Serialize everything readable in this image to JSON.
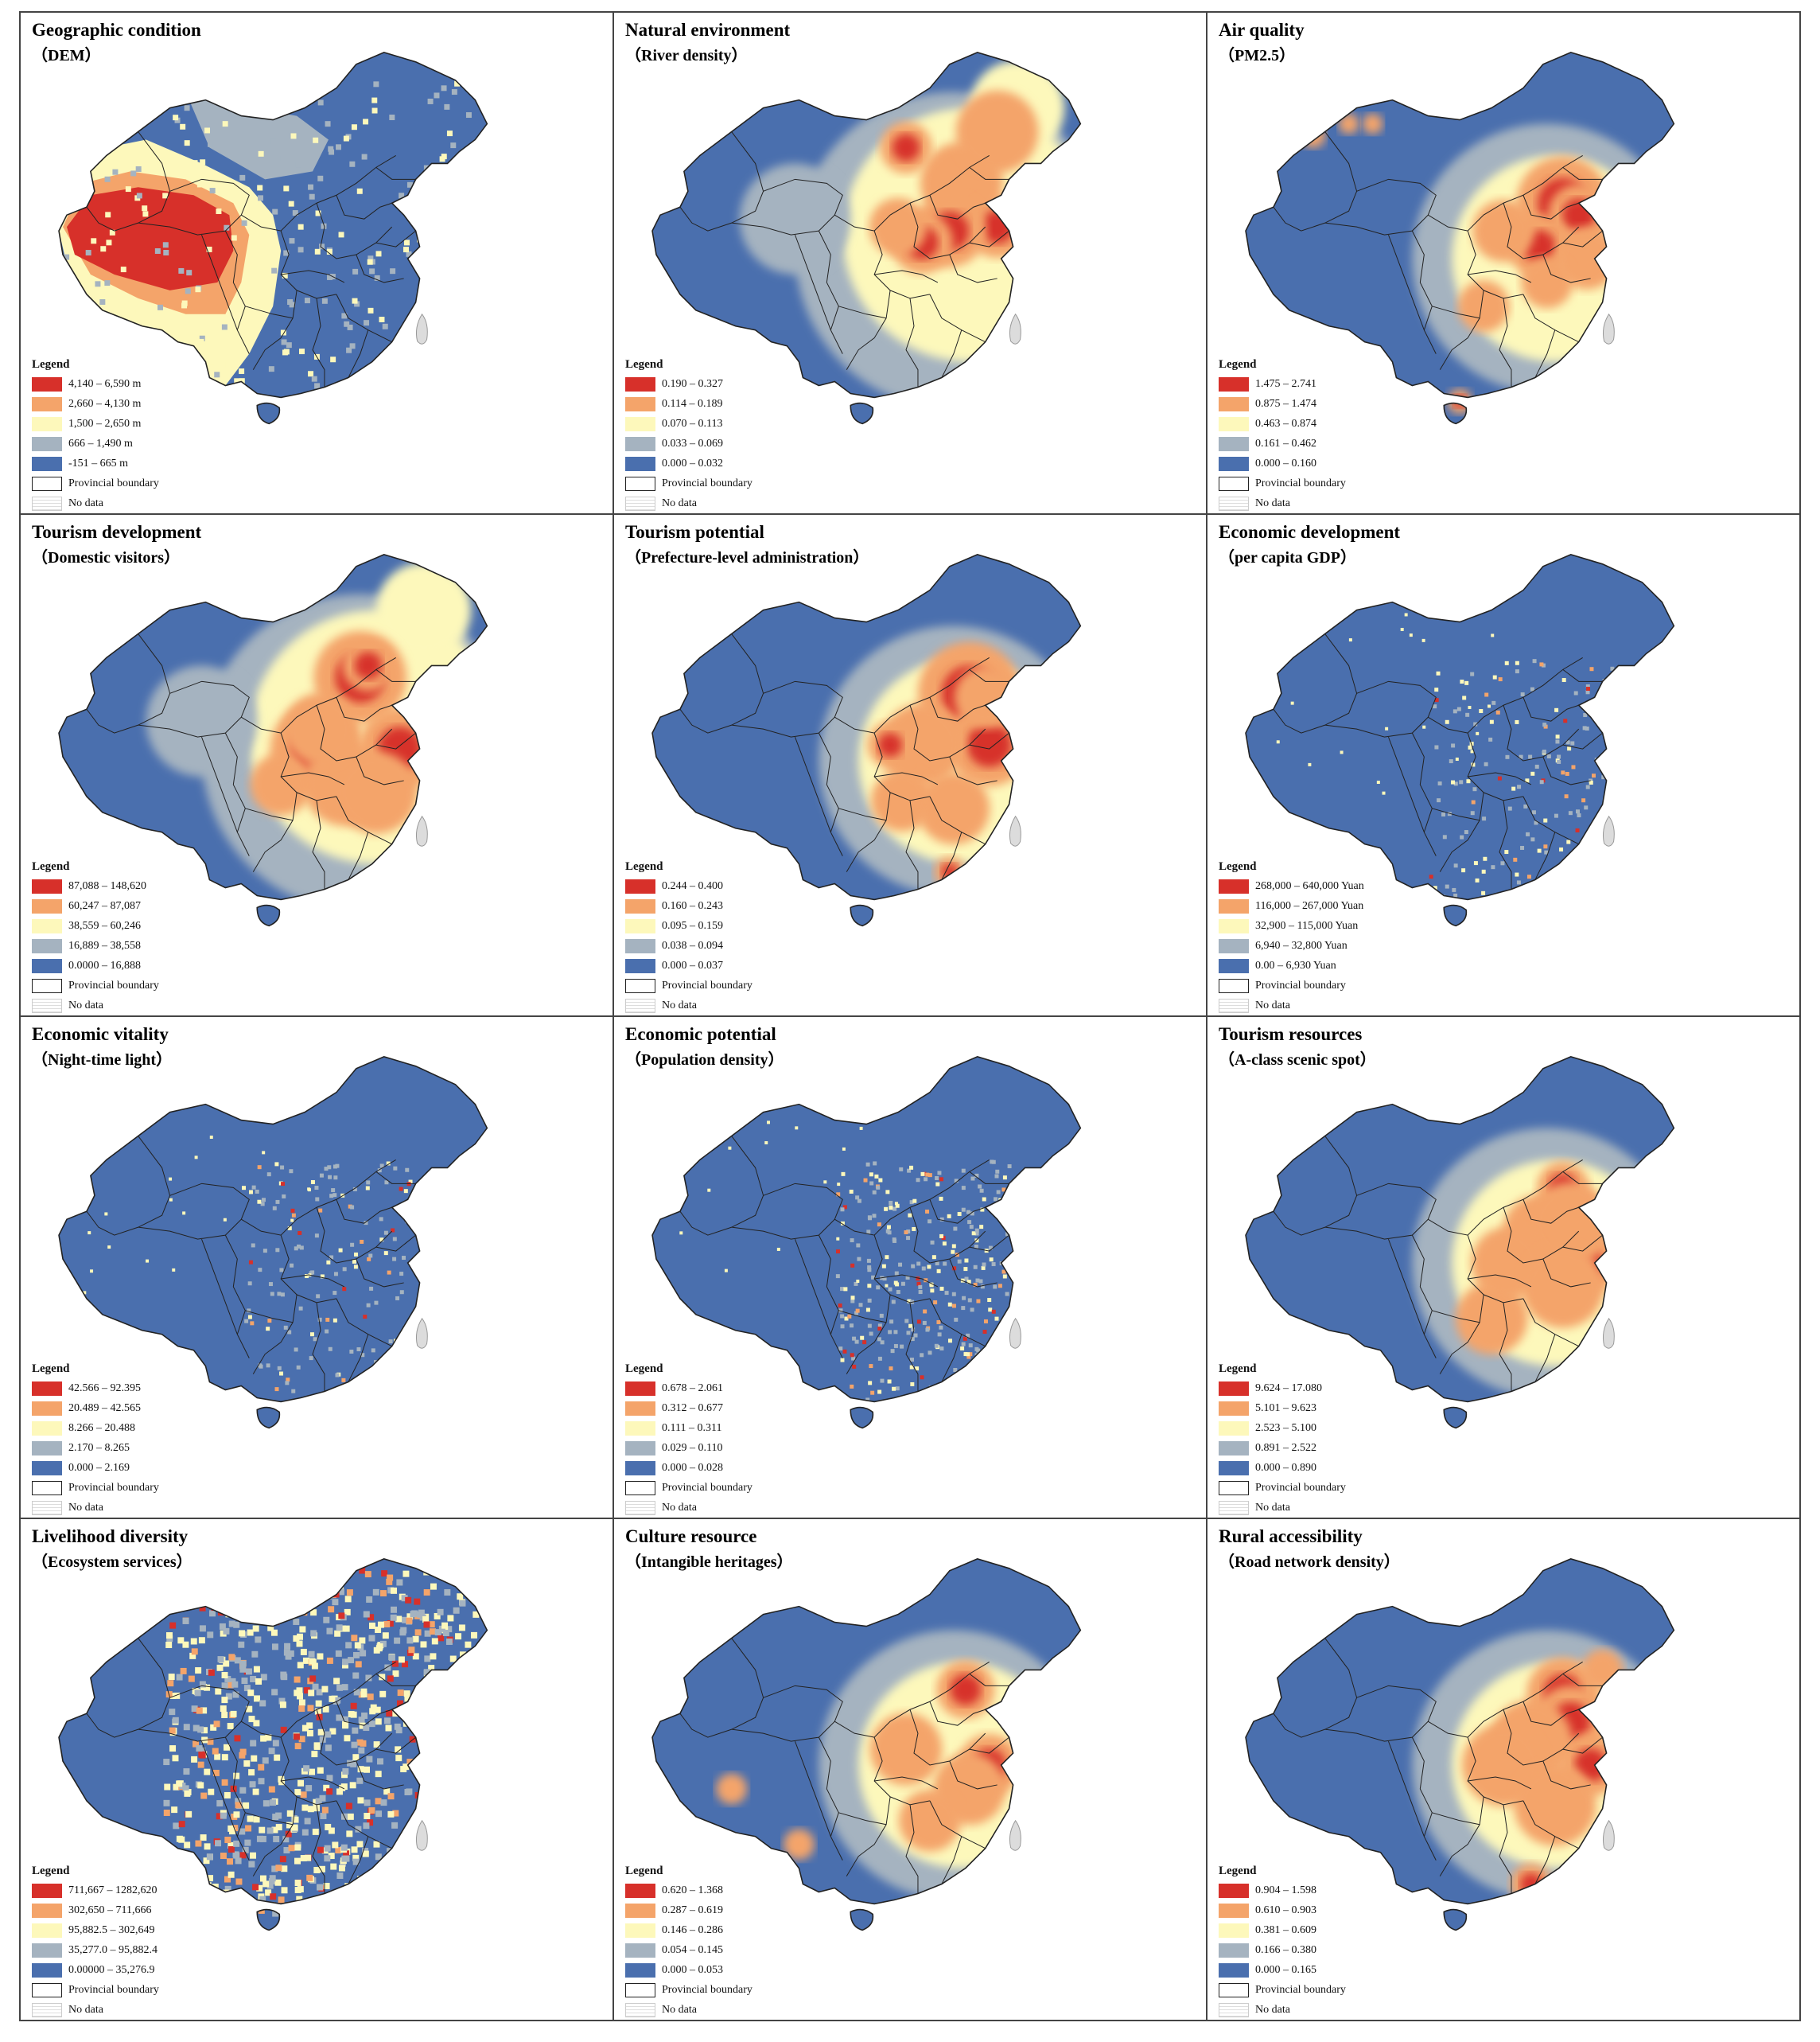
{
  "colors": {
    "class5": "#d7302a",
    "class4": "#f4a46a",
    "class3": "#fdf8bb",
    "class2": "#a5b3c0",
    "class1": "#4a6fae",
    "nodata": "#dcdcdc",
    "boundary": "#222222"
  },
  "legend_heading": "Legend",
  "boundary_label": "Provincial boundary",
  "nodata_label": "No data",
  "panels": [
    {
      "title": "Geographic condition",
      "subtitle": "（DEM）",
      "pattern": "dem",
      "classes": [
        "4,140 – 6,590 m",
        "2,660 – 4,130 m",
        "1,500 – 2,650 m",
        "666 – 1,490 m",
        "-151 –  665 m"
      ]
    },
    {
      "title": "Natural environment",
      "subtitle": "（River density）",
      "pattern": "river",
      "classes": [
        "0.190 – 0.327",
        "0.114 – 0.189",
        "0.070 – 0.113",
        "0.033 – 0.069",
        "0.000 – 0.032"
      ]
    },
    {
      "title": "Air quality",
      "subtitle": "（PM2.5）",
      "pattern": "pm25",
      "classes": [
        "1.475 – 2.741",
        "0.875 – 1.474",
        "0.463 – 0.874",
        "0.161 – 0.462",
        "0.000 – 0.160"
      ]
    },
    {
      "title": "Tourism development",
      "subtitle": "（Domestic visitors）",
      "pattern": "visitors",
      "classes": [
        "87,088 – 148,620",
        "60,247 – 87,087",
        "38,559 – 60,246",
        "16,889 – 38,558",
        "0.0000 – 16,888"
      ]
    },
    {
      "title": "Tourism potential",
      "subtitle": "（Prefecture-level administration）",
      "pattern": "prefecture",
      "classes": [
        "0.244 – 0.400",
        "0.160 – 0.243",
        "0.095 – 0.159",
        "0.038 – 0.094",
        "0.000 – 0.037"
      ]
    },
    {
      "title": "Economic development",
      "subtitle": "（per capita GDP）",
      "pattern": "gdp",
      "classes": [
        "268,000 – 640,000 Yuan",
        "116,000 – 267,000 Yuan",
        "32,900 – 115,000 Yuan",
        "6,940 – 32,800 Yuan",
        "0.00 – 6,930 Yuan"
      ]
    },
    {
      "title": "Economic vitality",
      "subtitle": "（Night-time light）",
      "pattern": "light",
      "classes": [
        "42.566 – 92.395",
        "20.489 – 42.565",
        "8.266 – 20.488",
        "2.170 – 8.265",
        "0.000 – 2.169"
      ]
    },
    {
      "title": "Economic potential",
      "subtitle": "（Population density）",
      "pattern": "population",
      "classes": [
        "0.678 – 2.061",
        "0.312 – 0.677",
        "0.111 – 0.311",
        "0.029 – 0.110",
        "0.000 – 0.028"
      ]
    },
    {
      "title": "Tourism resources",
      "subtitle": "（A-class scenic spot）",
      "pattern": "scenic",
      "classes": [
        "9.624 – 17.080",
        "5.101 – 9.623",
        "2.523 – 5.100",
        "0.891 – 2.522",
        "0.000 – 0.890"
      ]
    },
    {
      "title": "Livelihood diversity",
      "subtitle": "（Ecosystem services）",
      "pattern": "ecosystem",
      "classes": [
        "711,667 – 1282,620",
        "302,650 – 711,666",
        "95,882.5 – 302,649",
        "35,277.0 – 95,882.4",
        "0.00000 – 35,276.9"
      ]
    },
    {
      "title": "Culture resource",
      "subtitle": "（Intangible heritages）",
      "pattern": "heritage",
      "classes": [
        "0.620 – 1.368",
        "0.287 – 0.619",
        "0.146 – 0.286",
        "0.054 – 0.145",
        "0.000 – 0.053"
      ]
    },
    {
      "title": "Rural accessibility",
      "subtitle": "（Road network density）",
      "pattern": "road",
      "classes": [
        "0.904 – 1.598",
        "0.610 – 0.903",
        "0.381 – 0.609",
        "0.166 – 0.380",
        "0.000 – 0.165"
      ]
    }
  ]
}
